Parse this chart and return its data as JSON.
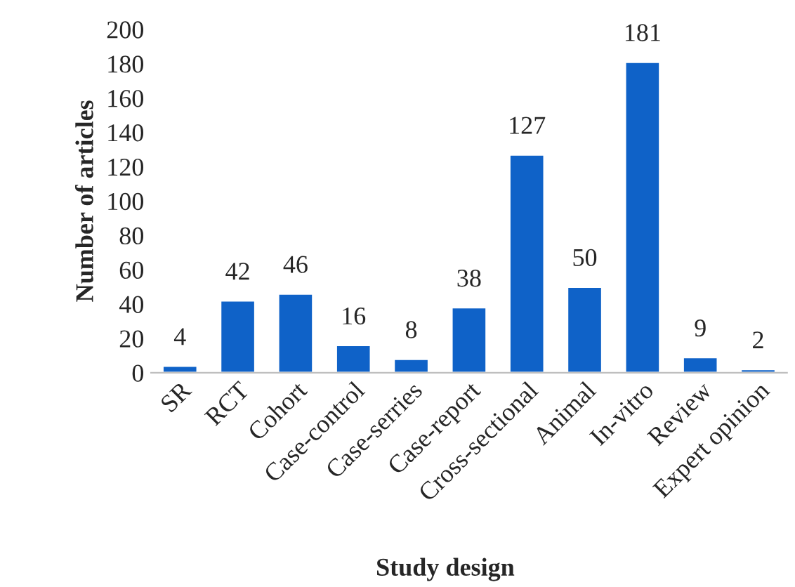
{
  "chart_data": {
    "type": "bar",
    "xlabel": "Study design",
    "ylabel": "Number of articles",
    "categories": [
      "SR",
      "RCT",
      "Cohort",
      "Case-control",
      "Case-serries",
      "Case-report",
      "Cross-sectional",
      "Animal",
      "In-vitro",
      "Review",
      "Expert opinion"
    ],
    "values": [
      4,
      42,
      46,
      16,
      8,
      38,
      127,
      50,
      181,
      9,
      2
    ],
    "color": "#0f62c8",
    "ylim": [
      0,
      200
    ],
    "yticks": [
      0,
      20,
      40,
      60,
      80,
      100,
      120,
      140,
      160,
      180,
      200
    ],
    "data_labels": true,
    "grid": false,
    "legend": false
  }
}
